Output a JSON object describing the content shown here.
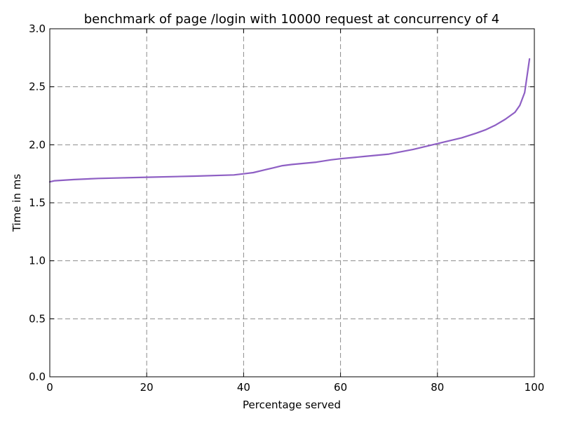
{
  "chart_data": {
    "type": "line",
    "title": "benchmark of page /login with 10000 request at concurrency of 4",
    "xlabel": "Percentage served",
    "ylabel": "Time in ms",
    "xlim": [
      0,
      100
    ],
    "ylim": [
      0,
      3.0
    ],
    "xticks": [
      0,
      20,
      40,
      60,
      80,
      100
    ],
    "xtick_labels": [
      "0",
      "20",
      "40",
      "60",
      "80",
      "100"
    ],
    "yticks": [
      0,
      0.5,
      1.0,
      1.5,
      2.0,
      2.5,
      3.0
    ],
    "ytick_labels": [
      "0.0",
      "0.5",
      "1.0",
      "1.5",
      "2.0",
      "2.5",
      "3.0"
    ],
    "grid": true,
    "legend": "none",
    "series": [
      {
        "color": "#8e5fc4",
        "x": [
          0,
          1,
          5,
          10,
          20,
          30,
          38,
          40,
          42,
          44,
          46,
          48,
          50,
          55,
          58,
          60,
          65,
          70,
          75,
          80,
          85,
          88,
          90,
          92,
          94,
          96,
          97,
          98,
          99
        ],
        "y": [
          1.68,
          1.69,
          1.7,
          1.71,
          1.72,
          1.73,
          1.74,
          1.75,
          1.76,
          1.78,
          1.8,
          1.82,
          1.83,
          1.85,
          1.87,
          1.88,
          1.9,
          1.92,
          1.96,
          2.01,
          2.06,
          2.1,
          2.13,
          2.17,
          2.22,
          2.28,
          2.34,
          2.45,
          2.74
        ]
      }
    ]
  }
}
